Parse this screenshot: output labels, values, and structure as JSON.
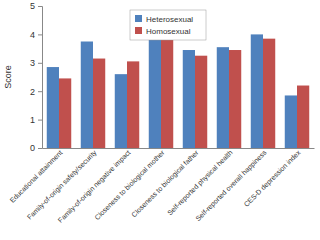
{
  "chart_data": {
    "type": "bar",
    "categories": [
      "Educational attainment",
      "Family-of-origin safety/security",
      "Family-of-origin negative impact",
      "Closeness to biological mother",
      "Closeness to biological father",
      "Self-reported physical health",
      "Self-reported overall happiness",
      "CES-D depression index"
    ],
    "series": [
      {
        "name": "Heterosexual",
        "color": "#4f81bd",
        "values": [
          2.85,
          3.75,
          2.6,
          4.0,
          3.45,
          3.55,
          4.0,
          1.85
        ]
      },
      {
        "name": "Homosexual",
        "color": "#c0504d",
        "values": [
          2.45,
          3.15,
          3.05,
          3.95,
          3.25,
          3.45,
          3.85,
          2.2
        ]
      }
    ],
    "y_label": "Score",
    "ylim": [
      0,
      5
    ],
    "yticks": [
      0,
      1,
      2,
      3,
      4,
      5
    ],
    "grid": false,
    "legend": "upper center"
  }
}
